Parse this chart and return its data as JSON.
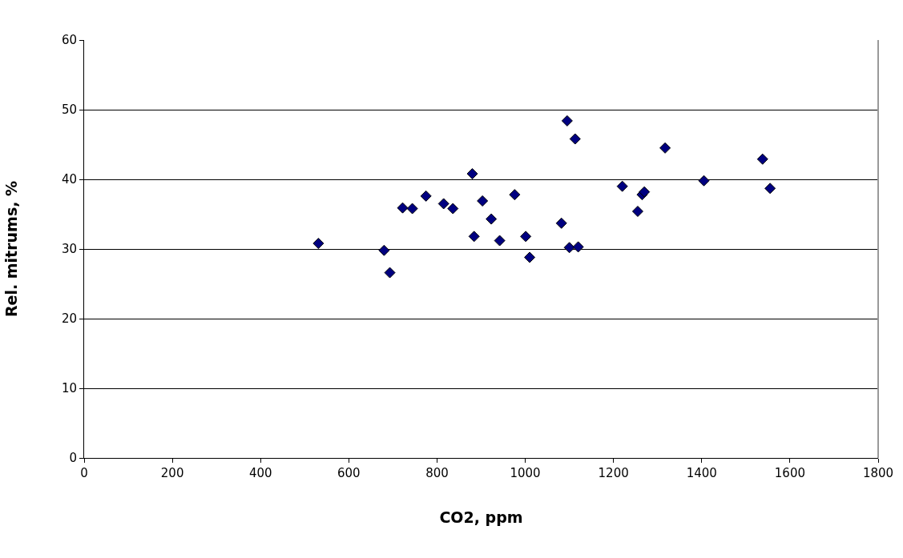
{
  "chart_data": {
    "type": "scatter",
    "xlabel": "CO2, ppm",
    "ylabel": "Rel. mitrums, %",
    "x": [
      531,
      680,
      693,
      722,
      744,
      775,
      815,
      836,
      880,
      884,
      903,
      923,
      942,
      976,
      1001,
      1010,
      1082,
      1095,
      1100,
      1113,
      1120,
      1220,
      1255,
      1265,
      1270,
      1317,
      1405,
      1538,
      1555
    ],
    "series": [
      {
        "color": "#000080",
        "values": [
          30.8,
          29.8,
          26.6,
          35.9,
          35.8,
          37.6,
          36.5,
          35.8,
          40.8,
          31.8,
          36.9,
          34.3,
          31.2,
          37.8,
          31.8,
          28.8,
          33.7,
          48.4,
          30.2,
          45.8,
          30.3,
          39.0,
          35.4,
          37.8,
          38.2,
          44.5,
          39.8,
          42.9,
          38.7
        ]
      }
    ],
    "xlim": [
      0,
      1800
    ],
    "xticks": [
      0,
      200,
      400,
      600,
      800,
      1000,
      1200,
      1400,
      1600,
      1800
    ],
    "ylim": [
      0,
      60
    ],
    "yticks": [
      0,
      10,
      20,
      30,
      40,
      50,
      60
    ],
    "grid": "y",
    "marker": "diamond"
  }
}
